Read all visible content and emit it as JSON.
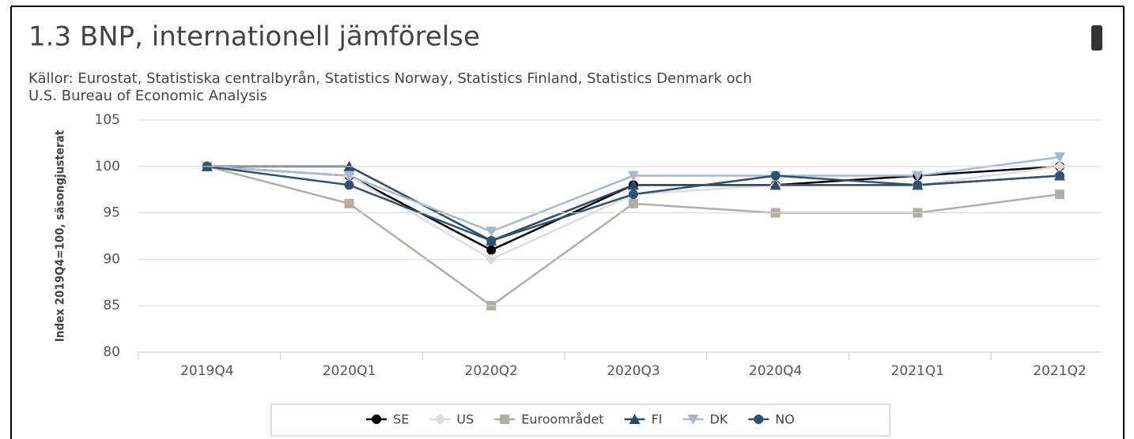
{
  "chart_data": {
    "type": "line",
    "title": "1.3 BNP, internationell jämförelse",
    "subtitle": [
      "Källor: Eurostat, Statistiska centralbyrån, Statistics Norway, Statistics Finland, Statistics Denmark och",
      "U.S. Bureau of Economic Analysis"
    ],
    "y_label": "Index 2019Q4=100, säsongjusterat",
    "categories": [
      "2019Q4",
      "2020Q1",
      "2020Q2",
      "2020Q3",
      "2020Q4",
      "2021Q1",
      "2021Q2"
    ],
    "series": [
      {
        "name": "SE",
        "color": "#000000",
        "marker": "circle",
        "values": [
          100,
          99,
          91,
          98,
          98,
          99,
          100
        ]
      },
      {
        "name": "US",
        "color": "#dcdcdc",
        "marker": "diamond",
        "values": [
          100,
          99,
          90,
          97,
          98,
          98,
          100
        ]
      },
      {
        "name": "Euroområdet",
        "color": "#b3aea4",
        "marker": "square",
        "values": [
          100,
          96,
          85,
          96,
          95,
          95,
          97
        ]
      },
      {
        "name": "FI",
        "color": "#2e4a68",
        "marker": "triangle",
        "values": [
          100,
          100,
          92,
          98,
          98,
          98,
          99
        ]
      },
      {
        "name": "DK",
        "color": "#a7b9d1",
        "marker": "triangle-down",
        "values": [
          100,
          99,
          93,
          99,
          99,
          99,
          101
        ]
      },
      {
        "name": "NO",
        "color": "#2d5373",
        "marker": "circle",
        "values": [
          100,
          98,
          92,
          97,
          99,
          98,
          99
        ]
      }
    ],
    "ylim": [
      80,
      105
    ],
    "yticks": [
      80,
      85,
      90,
      95,
      100,
      105
    ],
    "grid": true
  }
}
